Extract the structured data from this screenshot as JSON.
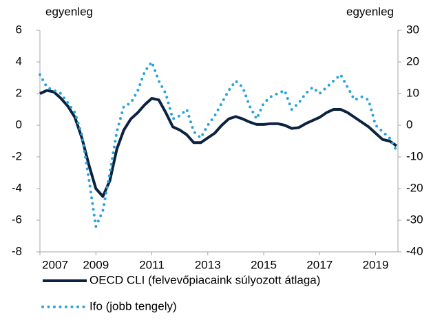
{
  "chart_data": {
    "type": "line",
    "y_label": "egyenleg",
    "y2_label": "egyenleg",
    "x": [
      2007,
      2007.25,
      2007.5,
      2007.75,
      2008,
      2008.25,
      2008.5,
      2008.75,
      2009,
      2009.25,
      2009.5,
      2009.75,
      2010,
      2010.25,
      2010.5,
      2010.75,
      2011,
      2011.25,
      2011.5,
      2011.75,
      2012,
      2012.25,
      2012.5,
      2012.75,
      2013,
      2013.25,
      2013.5,
      2013.75,
      2014,
      2014.25,
      2014.5,
      2014.75,
      2015,
      2015.25,
      2015.5,
      2015.75,
      2016,
      2016.25,
      2016.5,
      2016.75,
      2017,
      2017.25,
      2017.5,
      2017.75,
      2018,
      2018.25,
      2018.5,
      2018.75,
      2019,
      2019.25,
      2019.5,
      2019.75
    ],
    "series": [
      {
        "name": "OECD CLI (felvevőpiacaink súlyozott átlaga)",
        "color": "#0c2340",
        "style": "solid",
        "values": [
          2.0,
          2.2,
          2.1,
          1.7,
          1.2,
          0.5,
          -0.8,
          -2.5,
          -4.0,
          -4.5,
          -3.5,
          -1.5,
          -0.3,
          0.4,
          0.8,
          1.3,
          1.7,
          1.6,
          0.8,
          -0.1,
          -0.3,
          -0.6,
          -1.1,
          -1.1,
          -0.8,
          -0.5,
          0.0,
          0.4,
          0.55,
          0.4,
          0.2,
          0.05,
          0.05,
          0.1,
          0.1,
          0.0,
          -0.2,
          -0.15,
          0.1,
          0.3,
          0.5,
          0.8,
          1.0,
          1.0,
          0.8,
          0.5,
          0.2,
          -0.1,
          -0.5,
          -0.9,
          -1.0,
          -1.3
        ]
      },
      {
        "name": "Ifo (jobb tengely)",
        "color": "#29a3dc",
        "style": "dotted",
        "axis": "y2",
        "values": [
          16,
          12,
          11,
          10,
          7,
          4,
          -3,
          -17,
          -32,
          -27,
          -15,
          -2,
          6,
          7,
          11,
          17,
          20,
          14,
          10,
          2,
          3,
          5,
          -2,
          -4,
          0,
          3,
          7,
          11,
          14,
          12,
          6,
          2,
          7,
          9,
          10,
          11,
          5,
          7,
          10,
          12,
          10,
          12,
          14,
          16,
          12,
          8,
          9,
          8,
          0,
          -2,
          -4,
          -8
        ]
      }
    ],
    "xlim": [
      2007,
      2019.8
    ],
    "xticks": [
      2007,
      2009,
      2011,
      2013,
      2015,
      2017,
      2019
    ],
    "ylim": [
      -8,
      6
    ],
    "yticks": [
      -8,
      -6,
      -4,
      -2,
      0,
      2,
      4,
      6
    ],
    "y2lim": [
      -40,
      30
    ],
    "y2ticks": [
      -40,
      -30,
      -20,
      -10,
      0,
      10,
      20,
      30
    ],
    "grid": false,
    "legend": "bottom"
  }
}
